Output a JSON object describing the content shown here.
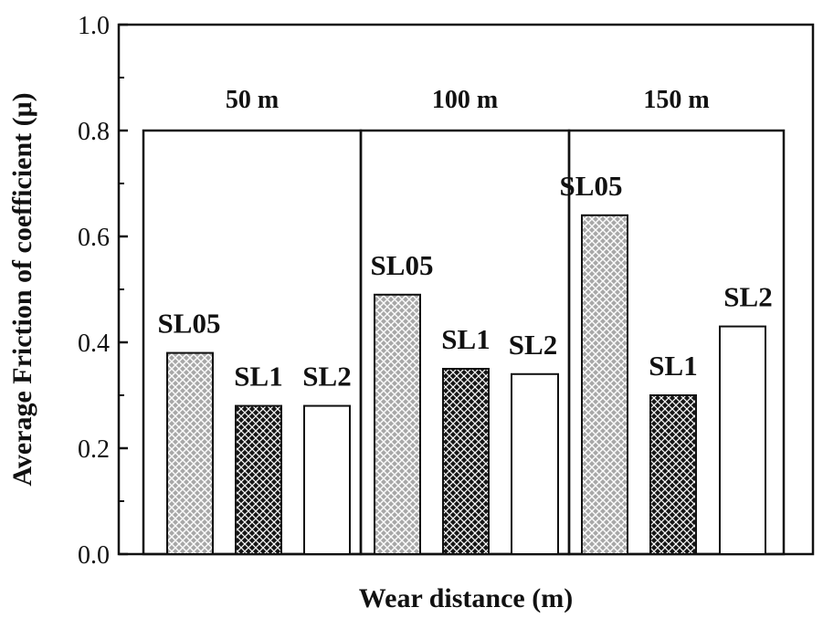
{
  "chart_data": {
    "type": "bar",
    "xlabel": "Wear distance (m)",
    "ylabel": "Average Friction of coefficient (μ)",
    "ylim": [
      0.0,
      1.0
    ],
    "yticks": [
      "0.0",
      "0.2",
      "0.4",
      "0.6",
      "0.8",
      "1.0"
    ],
    "grid": false,
    "groups": [
      {
        "label": "50 m",
        "bars": [
          {
            "name": "SL05",
            "value": 0.38
          },
          {
            "name": "SL1",
            "value": 0.28
          },
          {
            "name": "SL2",
            "value": 0.28
          }
        ]
      },
      {
        "label": "100 m",
        "bars": [
          {
            "name": "SL05",
            "value": 0.49
          },
          {
            "name": "SL1",
            "value": 0.35
          },
          {
            "name": "SL2",
            "value": 0.34
          }
        ]
      },
      {
        "label": "150 m",
        "bars": [
          {
            "name": "SL05",
            "value": 0.64
          },
          {
            "name": "SL1",
            "value": 0.3
          },
          {
            "name": "SL2",
            "value": 0.43
          }
        ]
      }
    ],
    "series_styles": {
      "SL05": {
        "fill": "gray-crosshatch",
        "color": "#9a9a9a"
      },
      "SL1": {
        "fill": "black-crosshatch",
        "color": "#1a1a1a"
      },
      "SL2": {
        "fill": "white",
        "color": "#ffffff"
      }
    }
  }
}
